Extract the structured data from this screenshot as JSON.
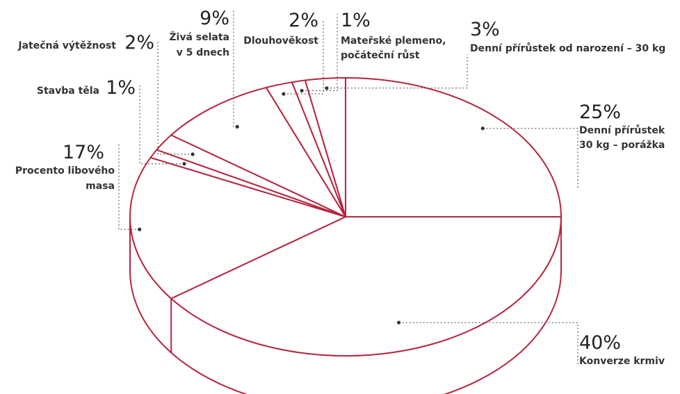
{
  "chart_data": {
    "type": "pie",
    "style": "3d",
    "colors": {
      "stroke": "#b5243e",
      "fill": "#ffffff",
      "text": "#222222"
    },
    "slices": [
      {
        "value": 25,
        "percent_label": "25%",
        "label_lines": [
          "Denní přírůstek",
          "30 kg – porážka"
        ]
      },
      {
        "value": 40,
        "percent_label": "40%",
        "label_lines": [
          "Konverze krmiv"
        ]
      },
      {
        "value": 17,
        "percent_label": "17%",
        "label_lines": [
          "Procento libového",
          "masa"
        ]
      },
      {
        "value": 1,
        "percent_label": "1%",
        "label_lines": [
          "Stavba těla"
        ]
      },
      {
        "value": 2,
        "percent_label": "2%",
        "label_lines": [
          "Jatečná výtěžnost"
        ]
      },
      {
        "value": 9,
        "percent_label": "9%",
        "label_lines": [
          "Živá selata",
          "v 5 dnech"
        ]
      },
      {
        "value": 2,
        "percent_label": "2%",
        "label_lines": [
          "Dlouhověkost"
        ]
      },
      {
        "value": 1,
        "percent_label": "1%",
        "label_lines": [
          "Mateřské plemeno,",
          "počáteční růst"
        ]
      },
      {
        "value": 3,
        "percent_label": "3%",
        "label_lines": [
          "Denní přírůstek od narození – 30 kg"
        ]
      }
    ]
  }
}
